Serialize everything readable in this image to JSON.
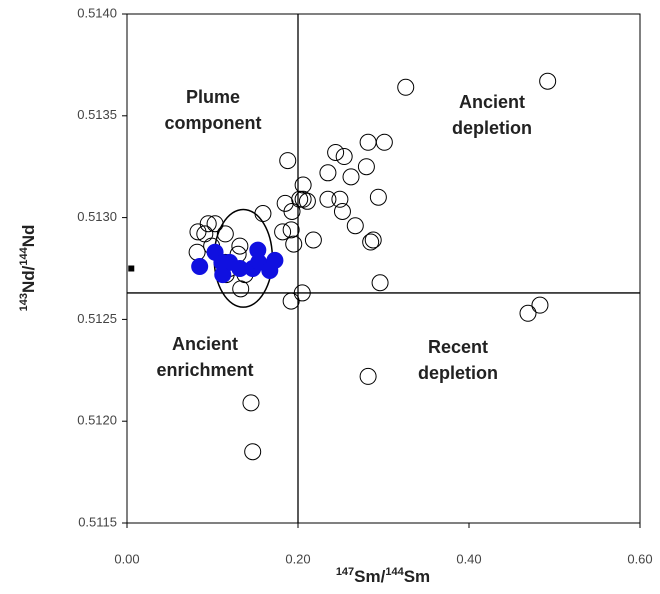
{
  "chart_data": {
    "type": "scatter",
    "x_label": [
      "147",
      "Sm/",
      "144",
      "Sm"
    ],
    "y_label": [
      "143",
      "Nd/",
      "144",
      "Nd"
    ],
    "xlim": [
      0,
      0.6
    ],
    "ylim": [
      0.5115,
      0.514
    ],
    "xticks": [
      {
        "value": 0,
        "label": "0.00"
      },
      {
        "value": 0.2,
        "label": "0.20"
      },
      {
        "value": 0.4,
        "label": "0.40"
      },
      {
        "value": 0.6,
        "label": "0.60"
      }
    ],
    "yticks": [
      {
        "value": 0.5115,
        "label": "0.5115"
      },
      {
        "value": 0.512,
        "label": "0.5120"
      },
      0.5125,
      {
        "value": 0.513,
        "label": "0.5130"
      },
      0.5135,
      {
        "value": 0.514,
        "label": "0.5140"
      }
    ],
    "reference_lines": {
      "x": 0.2,
      "y": 0.51263
    },
    "ellipse": {
      "cx": 0.136,
      "cy": 0.5128,
      "rx": 0.034,
      "ry": 0.00024,
      "color": "#000000"
    },
    "annotations": [
      [
        "Plume",
        "component"
      ],
      [
        "Ancient",
        "depletion"
      ],
      [
        "Ancient",
        "enrichment"
      ],
      [
        "Recent",
        "depletion"
      ]
    ],
    "series": [
      {
        "color": "#000000",
        "marker": "open-circle",
        "x": [
          0.326,
          0.492,
          0.301,
          0.282,
          0.244,
          0.254,
          0.188,
          0.28,
          0.235,
          0.262,
          0.206,
          0.206,
          0.185,
          0.235,
          0.249,
          0.252,
          0.211,
          0.202,
          0.159,
          0.294,
          0.267,
          0.218,
          0.192,
          0.195,
          0.288,
          0.285,
          0.083,
          0.095,
          0.103,
          0.091,
          0.115,
          0.099,
          0.082,
          0.132,
          0.13,
          0.296,
          0.205,
          0.192,
          0.469,
          0.483,
          0.282,
          0.145,
          0.147,
          0.115,
          0.12,
          0.133,
          0.138,
          0.116,
          0.193,
          0.182
        ],
        "values": [
          0.51364,
          0.51367,
          0.51337,
          0.51337,
          0.51332,
          0.5133,
          0.51328,
          0.51325,
          0.51322,
          0.5132,
          0.51316,
          0.51309,
          0.51307,
          0.51309,
          0.51309,
          0.51303,
          0.51308,
          0.51309,
          0.51302,
          0.5131,
          0.51296,
          0.51289,
          0.51294,
          0.51287,
          0.51289,
          0.51288,
          0.51293,
          0.51297,
          0.51297,
          0.51292,
          0.51292,
          0.51286,
          0.51283,
          0.51286,
          0.51282,
          0.51268,
          0.51263,
          0.51259,
          0.51253,
          0.51257,
          0.51222,
          0.51209,
          0.51185,
          0.51278,
          0.51275,
          0.51265,
          0.51272,
          0.51272,
          0.51303,
          0.51293
        ]
      },
      {
        "color": "#1010e0",
        "marker": "filled-circle",
        "x": [
          0.085,
          0.103,
          0.112,
          0.12,
          0.132,
          0.147,
          0.153,
          0.154,
          0.167,
          0.173,
          0.111
        ],
        "values": [
          0.51276,
          0.51283,
          0.51272,
          0.51278,
          0.51275,
          0.51275,
          0.51284,
          0.51278,
          0.51274,
          0.51279,
          0.51278
        ]
      },
      {
        "color": "#000000",
        "marker": "square",
        "x": [
          0.005
        ],
        "values": [
          0.51275
        ]
      }
    ]
  }
}
